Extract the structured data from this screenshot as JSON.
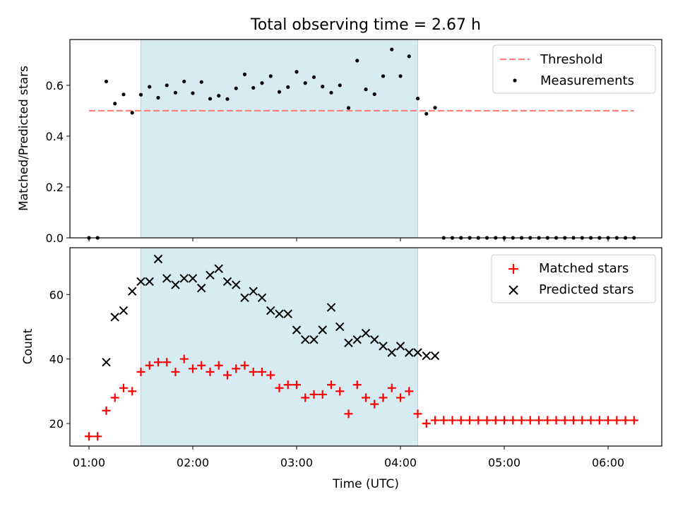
{
  "chart_data": [
    {
      "type": "scatter",
      "title": "Total observing time = 2.67 h",
      "ylabel": "Matched/Predicted stars",
      "xlabel": "",
      "xlim": [
        "00:49",
        "06:31"
      ],
      "ylim": [
        0,
        0.78
      ],
      "yticks": [
        0.0,
        0.2,
        0.4,
        0.6
      ],
      "ytick_labels": [
        "0.0",
        "0.2",
        "0.4",
        "0.6"
      ],
      "xticks": [
        "01:00",
        "02:00",
        "03:00",
        "04:00",
        "05:00",
        "06:00"
      ],
      "show_xtick_labels": false,
      "grid": false,
      "legend_position": "top-right",
      "shaded_span": {
        "x_start": "01:30",
        "x_end": "04:10",
        "color": "#add8e6"
      },
      "series": [
        {
          "name": "Threshold",
          "style": "dashed-line",
          "color": "#ff7f7f",
          "x": [
            "01:00",
            "06:15"
          ],
          "y": [
            0.5,
            0.5
          ]
        },
        {
          "name": "Measurements",
          "style": "dot",
          "color": "#000000",
          "x": [
            "01:00",
            "01:05",
            "01:10",
            "01:15",
            "01:20",
            "01:25",
            "01:30",
            "01:35",
            "01:40",
            "01:45",
            "01:50",
            "01:55",
            "02:00",
            "02:05",
            "02:10",
            "02:15",
            "02:20",
            "02:25",
            "02:30",
            "02:35",
            "02:40",
            "02:45",
            "02:50",
            "02:55",
            "03:00",
            "03:05",
            "03:10",
            "03:15",
            "03:20",
            "03:25",
            "03:30",
            "03:35",
            "03:40",
            "03:45",
            "03:50",
            "03:55",
            "04:00",
            "04:05",
            "04:10",
            "04:15",
            "04:20",
            "04:25",
            "04:30",
            "04:35",
            "04:40",
            "04:45",
            "04:50",
            "04:55",
            "05:00",
            "05:05",
            "05:10",
            "05:15",
            "05:20",
            "05:25",
            "05:30",
            "05:35",
            "05:40",
            "05:45",
            "05:50",
            "05:55",
            "06:00",
            "06:05",
            "06:10",
            "06:15"
          ],
          "y": [
            0,
            0,
            0.615,
            0.528,
            0.564,
            0.492,
            0.563,
            0.594,
            0.551,
            0.6,
            0.571,
            0.615,
            0.569,
            0.613,
            0.547,
            0.559,
            0.546,
            0.588,
            0.643,
            0.59,
            0.609,
            0.636,
            0.574,
            0.593,
            0.653,
            0.609,
            0.632,
            0.595,
            0.571,
            0.6,
            0.511,
            0.697,
            0.584,
            0.565,
            0.636,
            0.741,
            0.636,
            0.714,
            0.548,
            0.488,
            0.512,
            0,
            0,
            0,
            0,
            0,
            0,
            0,
            0,
            0,
            0,
            0,
            0,
            0,
            0,
            0,
            0,
            0,
            0,
            0,
            0,
            0,
            0,
            0
          ]
        }
      ]
    },
    {
      "type": "scatter",
      "title": "",
      "ylabel": "Count",
      "xlabel": "Time (UTC)",
      "xlim": [
        "00:49",
        "06:31"
      ],
      "ylim": [
        13,
        74.5
      ],
      "yticks": [
        20,
        40,
        60
      ],
      "ytick_labels": [
        "20",
        "40",
        "60"
      ],
      "xticks": [
        "01:00",
        "02:00",
        "03:00",
        "04:00",
        "05:00",
        "06:00"
      ],
      "xtick_labels": [
        "01:00",
        "02:00",
        "03:00",
        "04:00",
        "05:00",
        "06:00"
      ],
      "grid": false,
      "legend_position": "top-right",
      "shaded_span": {
        "x_start": "01:30",
        "x_end": "04:10",
        "color": "#add8e6"
      },
      "series": [
        {
          "name": "Matched stars",
          "style": "plus",
          "color": "#ff0000",
          "x": [
            "01:00",
            "01:05",
            "01:10",
            "01:15",
            "01:20",
            "01:25",
            "01:30",
            "01:35",
            "01:40",
            "01:45",
            "01:50",
            "01:55",
            "02:00",
            "02:05",
            "02:10",
            "02:15",
            "02:20",
            "02:25",
            "02:30",
            "02:35",
            "02:40",
            "02:45",
            "02:50",
            "02:55",
            "03:00",
            "03:05",
            "03:10",
            "03:15",
            "03:20",
            "03:25",
            "03:30",
            "03:35",
            "03:40",
            "03:45",
            "03:50",
            "03:55",
            "04:00",
            "04:05",
            "04:10",
            "04:15",
            "04:20",
            "04:25",
            "04:30",
            "04:35",
            "04:40",
            "04:45",
            "04:50",
            "04:55",
            "05:00",
            "05:05",
            "05:10",
            "05:15",
            "05:20",
            "05:25",
            "05:30",
            "05:35",
            "05:40",
            "05:45",
            "05:50",
            "05:55",
            "06:00",
            "06:05",
            "06:10",
            "06:15"
          ],
          "y": [
            16,
            16,
            24,
            28,
            31,
            30,
            36,
            38,
            39,
            39,
            36,
            40,
            37,
            38,
            36,
            38,
            35,
            37,
            38,
            36,
            36,
            35,
            31,
            32,
            32,
            28,
            29,
            29,
            32,
            30,
            23,
            32,
            28,
            26,
            28,
            31,
            28,
            30,
            23,
            20,
            21,
            21,
            21,
            21,
            21,
            21,
            21,
            21,
            21,
            21,
            21,
            21,
            21,
            21,
            21,
            21,
            21,
            21,
            21,
            21,
            21,
            21,
            21,
            21
          ]
        },
        {
          "name": "Predicted stars",
          "style": "x",
          "color": "#000000",
          "x": [
            "01:10",
            "01:15",
            "01:20",
            "01:25",
            "01:30",
            "01:35",
            "01:40",
            "01:45",
            "01:50",
            "01:55",
            "02:00",
            "02:05",
            "02:10",
            "02:15",
            "02:20",
            "02:25",
            "02:30",
            "02:35",
            "02:40",
            "02:45",
            "02:50",
            "02:55",
            "03:00",
            "03:05",
            "03:10",
            "03:15",
            "03:20",
            "03:25",
            "03:30",
            "03:35",
            "03:40",
            "03:45",
            "03:50",
            "03:55",
            "04:00",
            "04:05",
            "04:10",
            "04:15",
            "04:20"
          ],
          "y": [
            39,
            53,
            55,
            61,
            64,
            64,
            71,
            65,
            63,
            65,
            65,
            62,
            66,
            68,
            64,
            63,
            59,
            61,
            59,
            55,
            54,
            54,
            49,
            46,
            46,
            49,
            56,
            50,
            45,
            46,
            48,
            46,
            44,
            42,
            44,
            42,
            42,
            41,
            41
          ]
        }
      ]
    }
  ]
}
